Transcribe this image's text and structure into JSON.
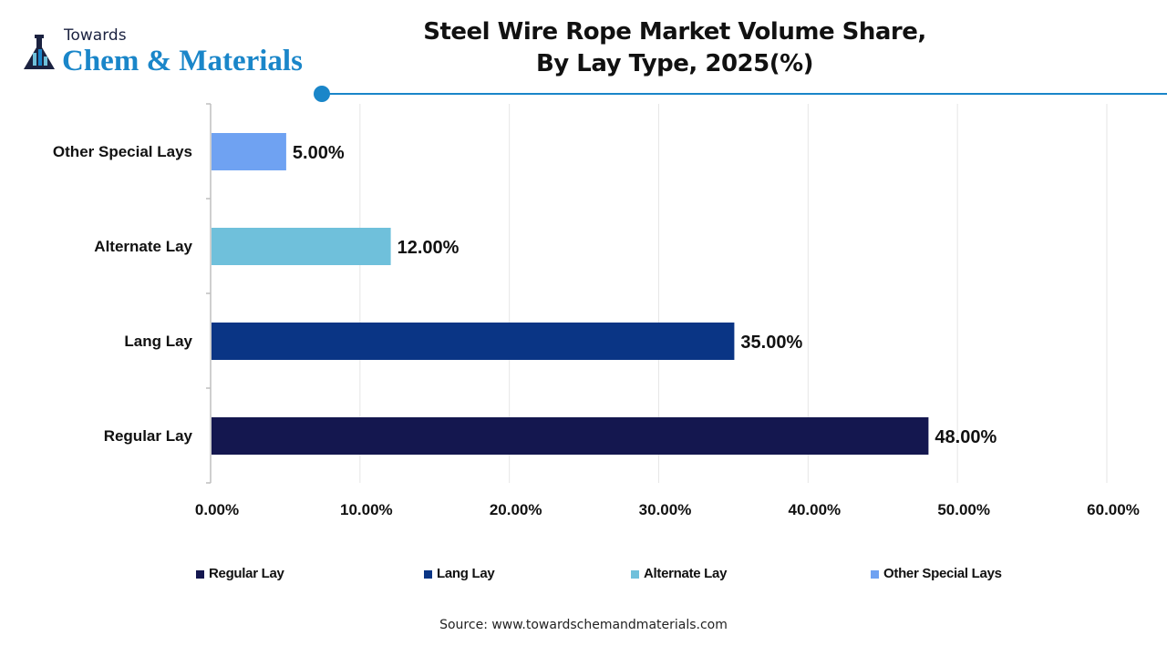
{
  "brand": {
    "line1": "Towards",
    "line2": "Chem & Materials"
  },
  "title_lines": [
    "Steel Wire Rope Market Volume Share,",
    "By Lay Type, 2025(%)"
  ],
  "source": "Source: www.towardschemandmaterials.com",
  "accent_color": "#1a86c9",
  "chart_data": {
    "type": "bar",
    "orientation": "horizontal",
    "title": "Steel Wire Rope Market Volume Share, By Lay Type, 2025(%)",
    "categories": [
      "Regular Lay",
      "Lang Lay",
      "Alternate Lay",
      "Other Special Lays"
    ],
    "values": [
      48,
      35,
      12,
      5
    ],
    "data_labels": [
      "48.00%",
      "35.00%",
      "12.00%",
      "5.00%"
    ],
    "colors": [
      "#14174f",
      "#0a3585",
      "#6fc0db",
      "#6fa2f2"
    ],
    "xlim": [
      0,
      60
    ],
    "x_ticks": [
      "0.00%",
      "10.00%",
      "20.00%",
      "30.00%",
      "40.00%",
      "50.00%",
      "60.00%"
    ],
    "grid": true,
    "legend": {
      "position": "bottom",
      "entries": [
        "Regular Lay",
        "Lang Lay",
        "Alternate Lay",
        "Other Special Lays"
      ]
    }
  }
}
